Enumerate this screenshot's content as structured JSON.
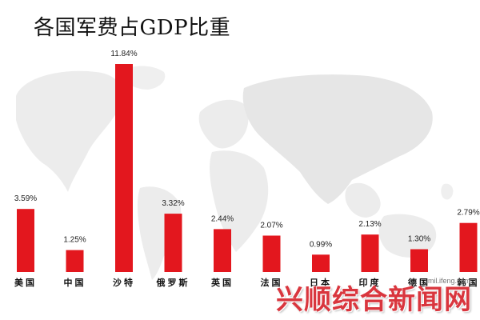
{
  "title": "各国军费占GDP比重",
  "source": "mil.ifeng.com",
  "watermark": "兴顺综合新闻网",
  "colors": {
    "bar": "#e3171e",
    "map": "#e9e9e9"
  },
  "chart_data": {
    "type": "bar",
    "title": "各国军费占GDP比重",
    "categories": [
      "美国",
      "中国",
      "沙特",
      "俄罗斯",
      "英国",
      "法国",
      "日本",
      "印度",
      "德国",
      "韩国"
    ],
    "values": [
      3.59,
      1.25,
      11.84,
      3.32,
      2.44,
      2.07,
      0.99,
      2.13,
      1.3,
      2.79
    ],
    "value_labels": [
      "3.59%",
      "1.25%",
      "11.84%",
      "3.32%",
      "2.44%",
      "2.07%",
      "0.99%",
      "2.13%",
      "1.30%",
      "2.79%"
    ],
    "ylim": [
      0,
      11.84
    ],
    "grid": false,
    "legend": "none"
  }
}
